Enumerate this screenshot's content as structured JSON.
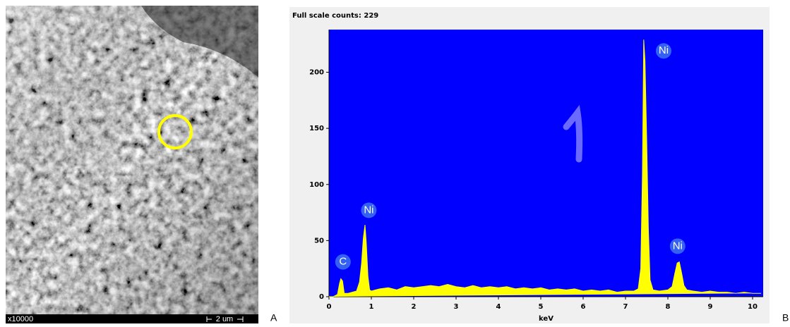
{
  "panels": {
    "a": "A",
    "b": "B"
  },
  "sem": {
    "magnification": "x10000",
    "scale": "2 um"
  },
  "chart_data": {
    "type": "area",
    "title": "Full scale counts: 229",
    "x_label": "keV",
    "x": [
      0,
      0.1,
      0.2,
      0.25,
      0.28,
      0.32,
      0.36,
      0.45,
      0.55,
      0.65,
      0.72,
      0.77,
      0.81,
      0.85,
      0.88,
      0.92,
      0.96,
      1.0,
      1.1,
      1.2,
      1.4,
      1.6,
      1.8,
      2.0,
      2.2,
      2.4,
      2.6,
      2.8,
      3.0,
      3.2,
      3.4,
      3.6,
      3.8,
      4.0,
      4.2,
      4.4,
      4.6,
      4.8,
      5.0,
      5.2,
      5.4,
      5.6,
      5.8,
      6.0,
      6.2,
      6.4,
      6.6,
      6.8,
      7.0,
      7.2,
      7.3,
      7.36,
      7.4,
      7.43,
      7.46,
      7.5,
      7.54,
      7.58,
      7.65,
      7.8,
      8.0,
      8.1,
      8.16,
      8.22,
      8.27,
      8.32,
      8.38,
      8.45,
      8.6,
      8.8,
      9.0,
      9.2,
      9.4,
      9.6,
      9.8,
      10.0,
      10.2
    ],
    "series": [
      {
        "color": "#ffff00",
        "values": [
          0,
          0,
          2,
          12,
          16,
          14,
          3,
          3,
          4,
          5,
          13,
          30,
          52,
          64,
          48,
          18,
          6,
          5,
          6,
          7,
          8,
          6,
          9,
          8,
          9,
          10,
          9,
          11,
          9,
          8,
          10,
          8,
          9,
          8,
          9,
          7,
          8,
          7,
          8,
          6,
          7,
          6,
          7,
          5,
          6,
          5,
          6,
          4,
          5,
          5,
          7,
          25,
          110,
          229,
          210,
          140,
          60,
          15,
          6,
          5,
          6,
          9,
          20,
          30,
          31,
          22,
          10,
          6,
          5,
          4,
          5,
          4,
          4,
          3,
          4,
          3,
          3
        ]
      }
    ],
    "background": "#0000ff",
    "xlim": [
      0,
      10.25
    ],
    "xticks": [
      0,
      1,
      2,
      3,
      4,
      5,
      6,
      7,
      8,
      9,
      10
    ],
    "ylim": [
      0,
      238
    ],
    "yticks": [
      0,
      50,
      100,
      150,
      200
    ],
    "annotations": [
      {
        "text": "C",
        "x": 0.33,
        "y": 31
      },
      {
        "text": "Ni",
        "x": 0.94,
        "y": 77
      },
      {
        "text": "Ni",
        "x": 7.9,
        "y": 219
      },
      {
        "text": "Ni",
        "x": 8.23,
        "y": 45
      }
    ]
  }
}
